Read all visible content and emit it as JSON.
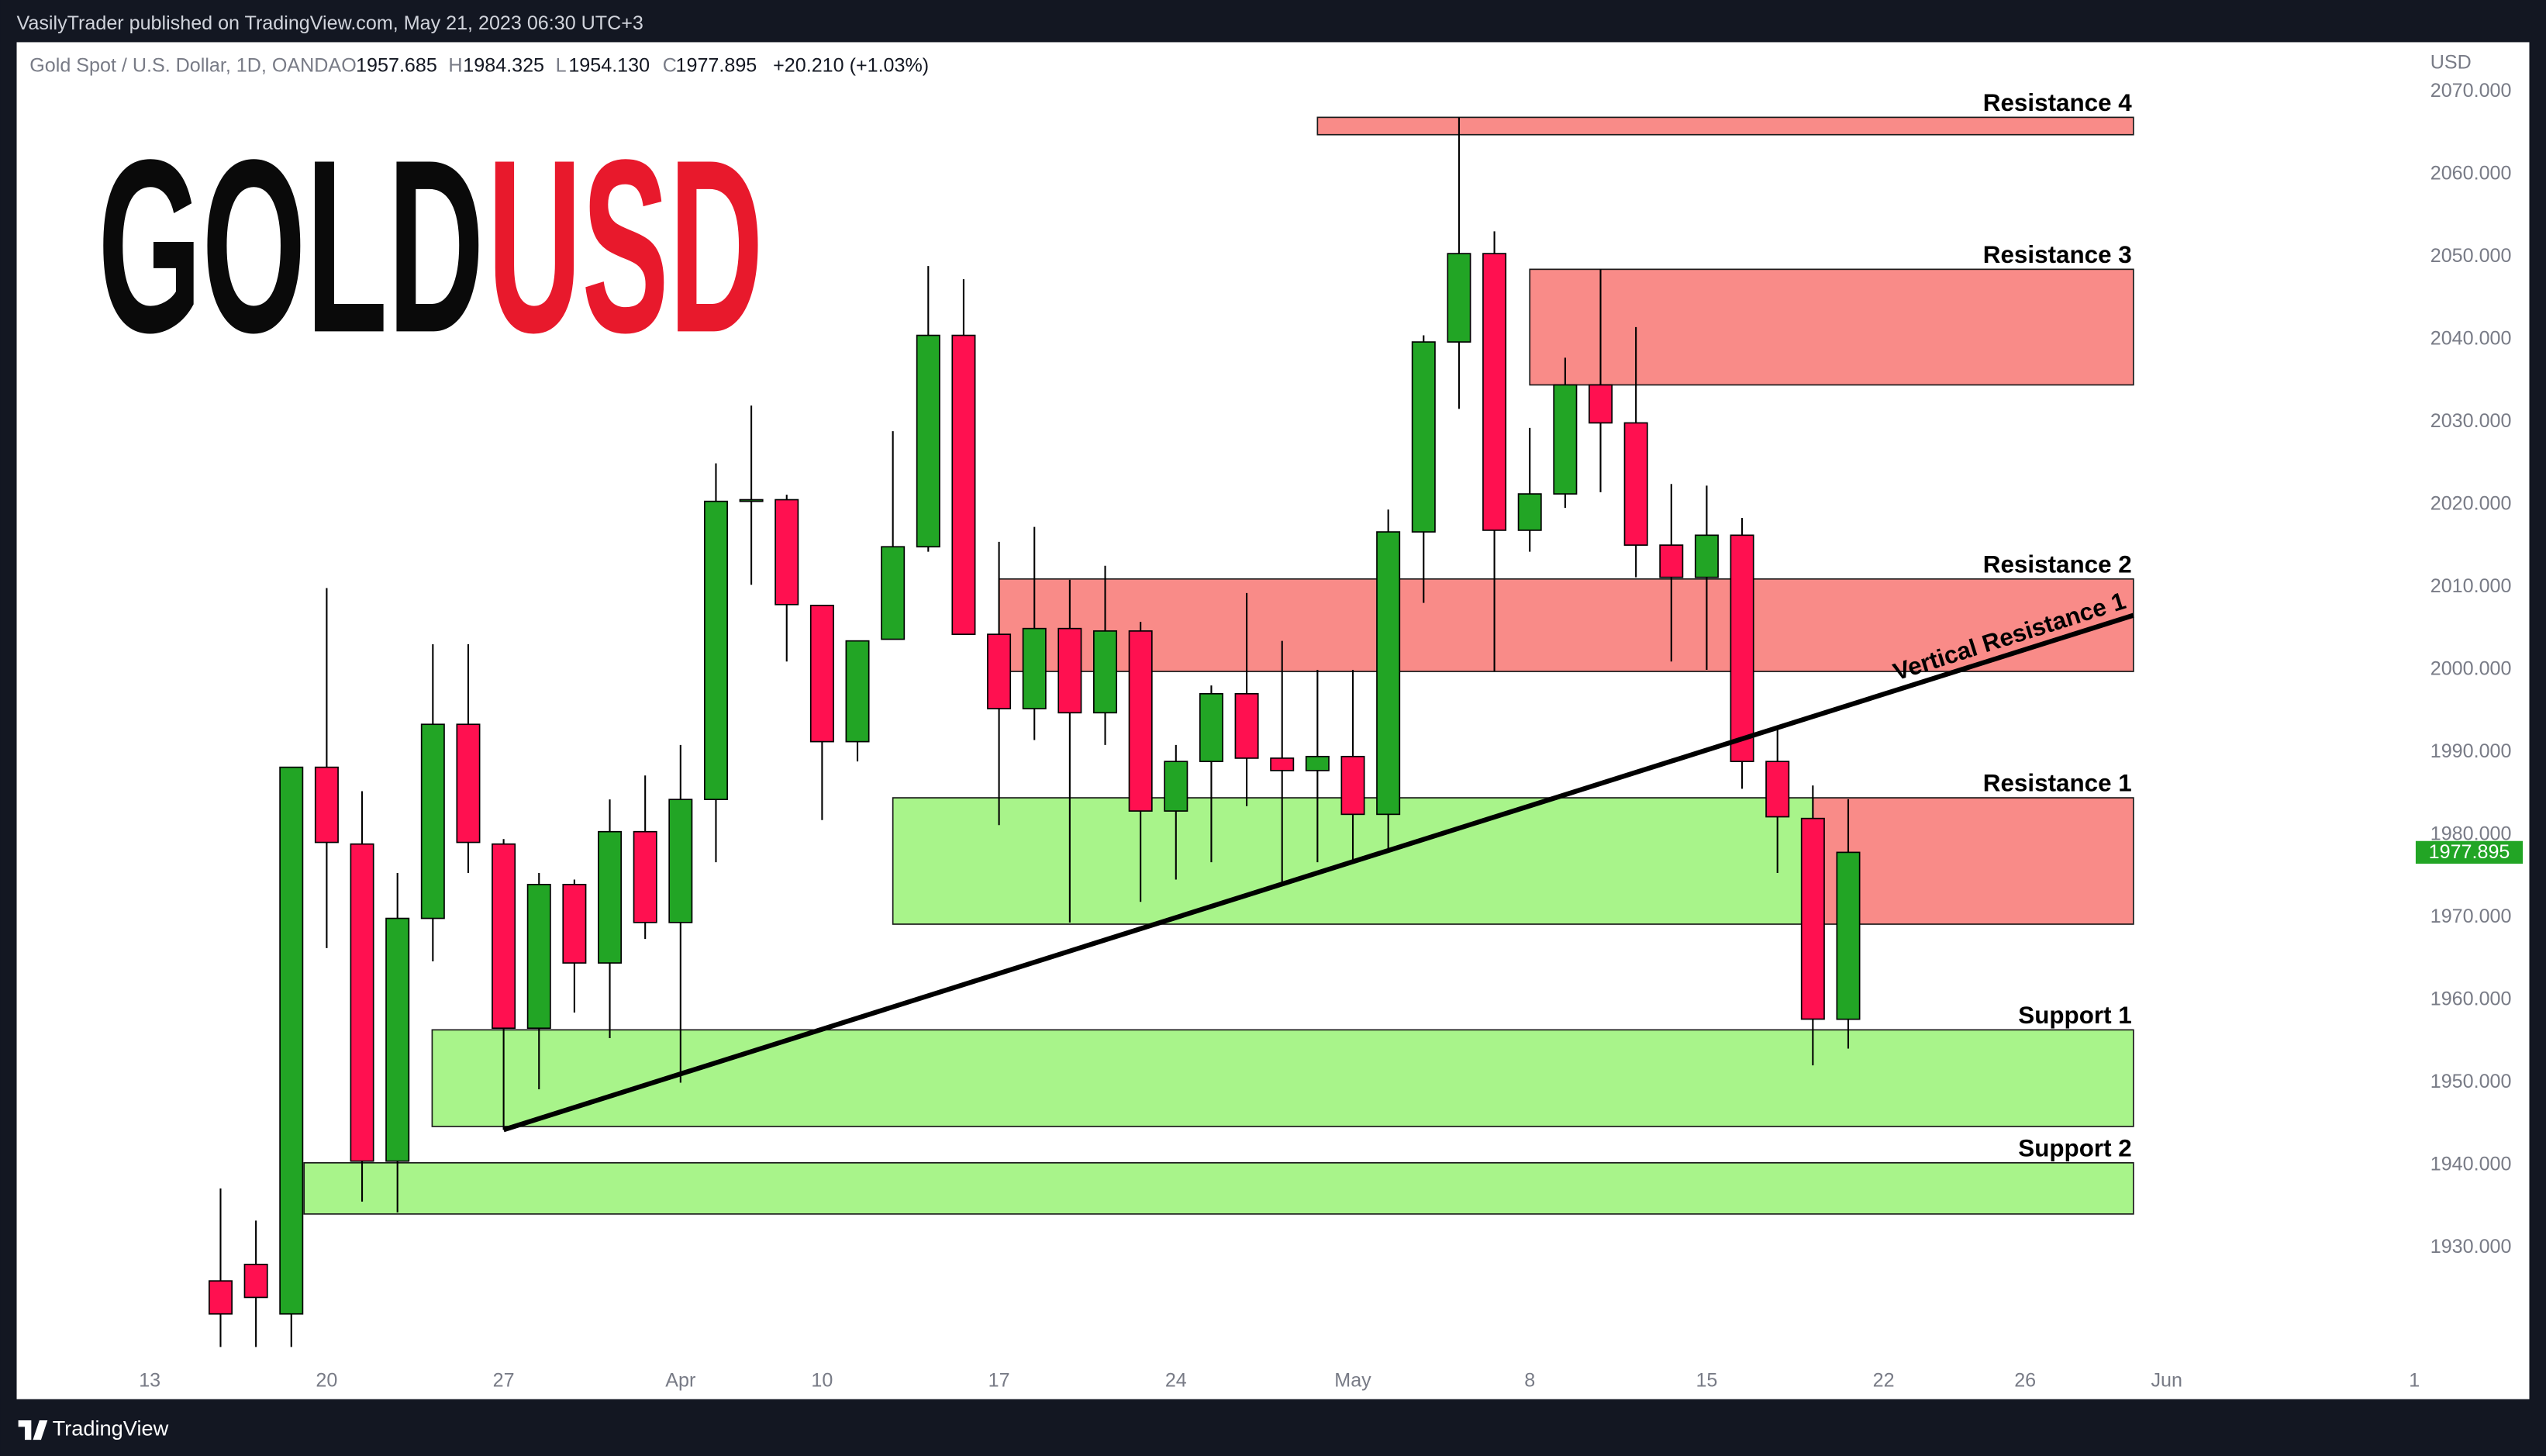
{
  "header": {
    "publisher": "VasilyTrader published on TradingView.com, May 21, 2023 06:30 UTC+3",
    "brand": "TradingView"
  },
  "logo": {
    "left": "GOLD",
    "right": "USD"
  },
  "chart_data": {
    "type": "candlestick",
    "title": "Gold Spot / U.S. Dollar, 1D, OANDA",
    "ohlc_labels": [
      "O",
      "H",
      "L",
      "C"
    ],
    "ohlc_text": [
      "1957.685",
      "1984.325",
      "1954.130",
      "1977.895"
    ],
    "change": "+20.210 (+1.03%)",
    "currency": "USD",
    "categories": [
      "13",
      null,
      null,
      null,
      null,
      "20",
      null,
      null,
      null,
      null,
      "27",
      null,
      null,
      null,
      null,
      "Apr",
      null,
      null,
      null,
      "10",
      null,
      null,
      null,
      null,
      "17",
      null,
      null,
      null,
      null,
      "24",
      null,
      null,
      null,
      null,
      "May",
      null,
      null,
      null,
      null,
      "8",
      null,
      null,
      null,
      null,
      "15",
      null,
      null,
      null,
      null,
      "22",
      null,
      null,
      null,
      "26",
      null,
      null,
      null,
      "Jun",
      null,
      null,
      null,
      null,
      null,
      null,
      "1"
    ],
    "open": [
      null,
      null,
      1926,
      1928,
      1922,
      1988.2,
      1978.9,
      1940.5,
      1969.9,
      1993.4,
      1978.9,
      1956.6,
      1974.0,
      1964.5,
      1980.4,
      1969.4,
      1984.3,
      2020.4,
      2020.6,
      2007.8,
      1991.3,
      2003.7,
      2014.9,
      2040.5,
      2004.3,
      1995.3,
      2005.0,
      1994.8,
      2004.7,
      1982.9,
      1988.9,
      1997.1,
      1989.3,
      1987.8,
      1989.5,
      1982.5,
      2016.7,
      2039.7,
      2050.4,
      2016.9,
      2021.3,
      2034.5,
      2029.9,
      2015.1,
      2011.2,
      2016.3,
      1988.9,
      1982.0,
      1957.685,
      null,
      null,
      null,
      null,
      null,
      null,
      null,
      null,
      null,
      null,
      null,
      null,
      null,
      null,
      null,
      null
    ],
    "high": [
      null,
      null,
      1937.2,
      1933.3,
      1988.2,
      2009.9,
      1985.3,
      1975.4,
      2003.1,
      2003.1,
      1979.5,
      1975.4,
      1974.6,
      1984.3,
      1987.2,
      1990.9,
      2025.0,
      2032.0,
      2021.2,
      2007.8,
      2003.5,
      2028.9,
      2048.9,
      2047.3,
      2015.5,
      2017.3,
      2010.9,
      2012.6,
      2005.8,
      1990.9,
      1998.1,
      2009.3,
      2003.5,
      2000.0,
      2000.0,
      2019.4,
      2040.5,
      2066.9,
      2053.1,
      2029.3,
      2037.8,
      2048.5,
      2041.5,
      2022.5,
      2022.3,
      2018.4,
      1992.8,
      1986.0,
      1984.325,
      null,
      null,
      null,
      null,
      null,
      null,
      null,
      null,
      null,
      null,
      null,
      null,
      null,
      null,
      null,
      null
    ],
    "low": [
      null,
      null,
      1918,
      1918,
      1918,
      1966.3,
      1935.6,
      1934.3,
      1964.7,
      1975.4,
      1944.3,
      1949.2,
      1958.5,
      1955.4,
      1967.4,
      1950.0,
      1976.7,
      2010.3,
      2001.0,
      1981.8,
      1988.9,
      2003.7,
      2014.3,
      2004.3,
      1981.2,
      1991.5,
      1969.4,
      1990.9,
      1971.9,
      1974.6,
      1976.7,
      1983.5,
      1974.0,
      1976.7,
      1976.9,
      1978.3,
      2008.1,
      2031.6,
      1999.8,
      2014.3,
      2019.6,
      2021.5,
      2011.2,
      2001.0,
      2000.0,
      1985.6,
      1975.4,
      1952.1,
      1954.13,
      null,
      null,
      null,
      null,
      null,
      null,
      null,
      null,
      null,
      null,
      null,
      null,
      null,
      null,
      null,
      null
    ],
    "close": [
      null,
      null,
      1922,
      1924,
      1988.2,
      1979.1,
      1940.5,
      1969.9,
      1993.4,
      1979.1,
      1956.6,
      1974.0,
      1964.5,
      1980.4,
      1969.4,
      1984.3,
      2020.4,
      2020.6,
      2007.9,
      1991.3,
      2003.5,
      2014.9,
      2040.5,
      2004.3,
      1995.3,
      2005.0,
      1994.8,
      2004.7,
      1982.9,
      1988.9,
      1997.1,
      1989.3,
      1987.8,
      1989.5,
      1982.5,
      2016.7,
      2039.7,
      2050.4,
      2016.9,
      2021.3,
      2034.5,
      2029.9,
      2015.1,
      2011.2,
      2016.3,
      1988.9,
      1982.2,
      1957.7,
      1977.895,
      null,
      null,
      null,
      null,
      null,
      null,
      null,
      null,
      null,
      null,
      null,
      null,
      null,
      null,
      null,
      null
    ],
    "up_color": "#22a525",
    "down_color": "#ff1050",
    "zones": [
      {
        "label": "Resistance 4",
        "low": 2064.8,
        "high": 2066.9,
        "color": "#f98b88"
      },
      {
        "label": "Resistance 3",
        "low": 2034.5,
        "high": 2048.5,
        "color": "#f98b88"
      },
      {
        "label": "Resistance 2",
        "low": 1999.8,
        "high": 2011.0,
        "color": "#f98b88"
      },
      {
        "label": "Resistance 1",
        "low": 1969.2,
        "high": 1984.5,
        "color": "#f98b88"
      },
      {
        "low": 1969.2,
        "high": 1984.5,
        "color": "#a8f48a"
      },
      {
        "label": "Support 1",
        "low": 1944.7,
        "high": 1956.4,
        "color": "#a8f48a"
      },
      {
        "label": "Support 2",
        "low": 1934.1,
        "high": 1940.3,
        "color": "#a8f48a"
      }
    ],
    "trendline": {
      "label": "Vertical Resistance 1",
      "values": [
        1944.3,
        2006.6
      ]
    },
    "ylim": [
      1916,
      2076
    ],
    "yticks": [
      {
        "value": 1930,
        "label": "1930.000"
      },
      {
        "value": 1940,
        "label": "1940.000"
      },
      {
        "value": 1950,
        "label": "1950.000"
      },
      {
        "value": 1960,
        "label": "1960.000"
      },
      {
        "value": 1970,
        "label": "1970.000"
      },
      {
        "value": 1980,
        "label": "1980.000"
      },
      {
        "value": 1990,
        "label": "1990.000"
      },
      {
        "value": 2000,
        "label": "2000.000"
      },
      {
        "value": 2010,
        "label": "2010.000"
      },
      {
        "value": 2020,
        "label": "2020.000"
      },
      {
        "value": 2030,
        "label": "2030.000"
      },
      {
        "value": 2040,
        "label": "2040.000"
      },
      {
        "value": 2050,
        "label": "2050.000"
      },
      {
        "value": 2060,
        "label": "2060.000"
      },
      {
        "value": 2070,
        "label": "2070.000"
      }
    ]
  }
}
